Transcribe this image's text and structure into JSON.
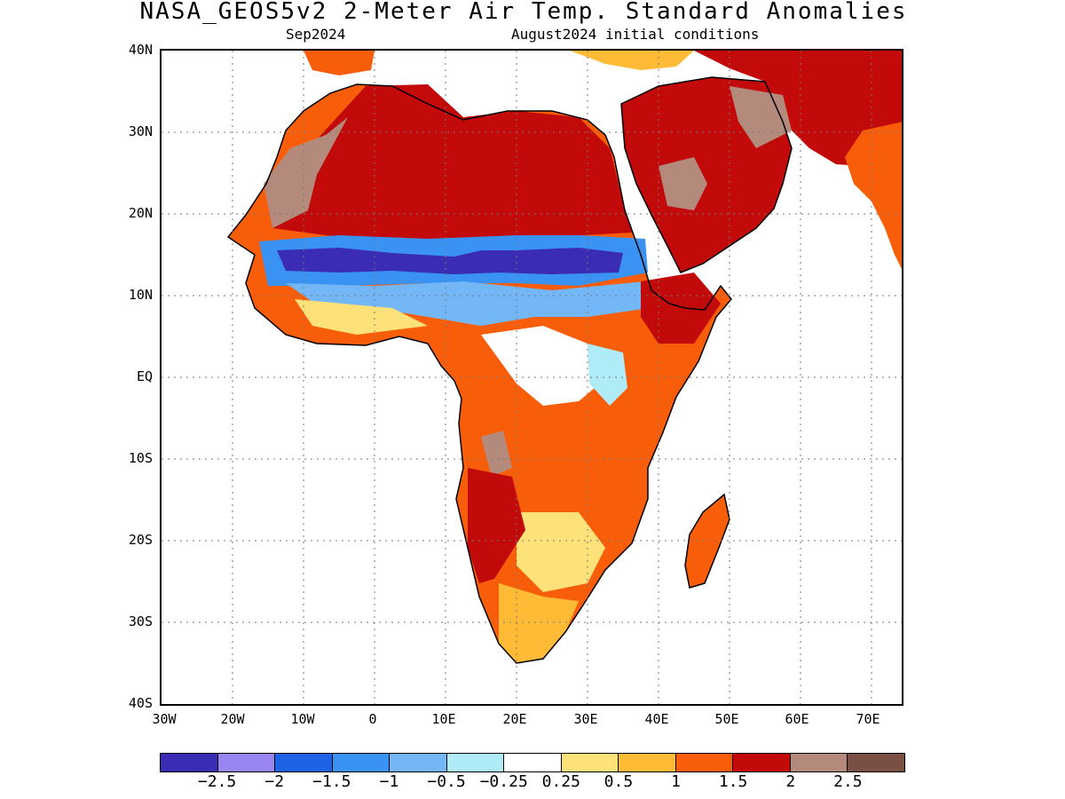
{
  "header": {
    "title": "NASA_GEOS5v2 2-Meter Air Temp. Standard Anomalies",
    "left_subtitle": "Sep2024",
    "right_subtitle": "August2024 initial conditions"
  },
  "axes": {
    "lat_labels": [
      "40N",
      "30N",
      "20N",
      "10N",
      "EQ",
      "10S",
      "20S",
      "30S",
      "40S"
    ],
    "lon_labels": [
      "30W",
      "20W",
      "10W",
      "0",
      "10E",
      "20E",
      "30E",
      "40E",
      "50E",
      "60E",
      "70E"
    ]
  },
  "legend": {
    "colors": [
      "#3a2cb4",
      "#9a86f0",
      "#1d63e3",
      "#3a92f2",
      "#74b7f6",
      "#b0ecf8",
      "#ffffff",
      "#ffe17a",
      "#ffbb36",
      "#f85d0a",
      "#c20a0a",
      "#b48a7d",
      "#7a5044"
    ],
    "labels": [
      "−2.5",
      "−2",
      "−1.5",
      "−1",
      "−0.5",
      "−0.25",
      "0.25",
      "0.5",
      "1",
      "1.5",
      "2",
      "2.5"
    ]
  }
}
